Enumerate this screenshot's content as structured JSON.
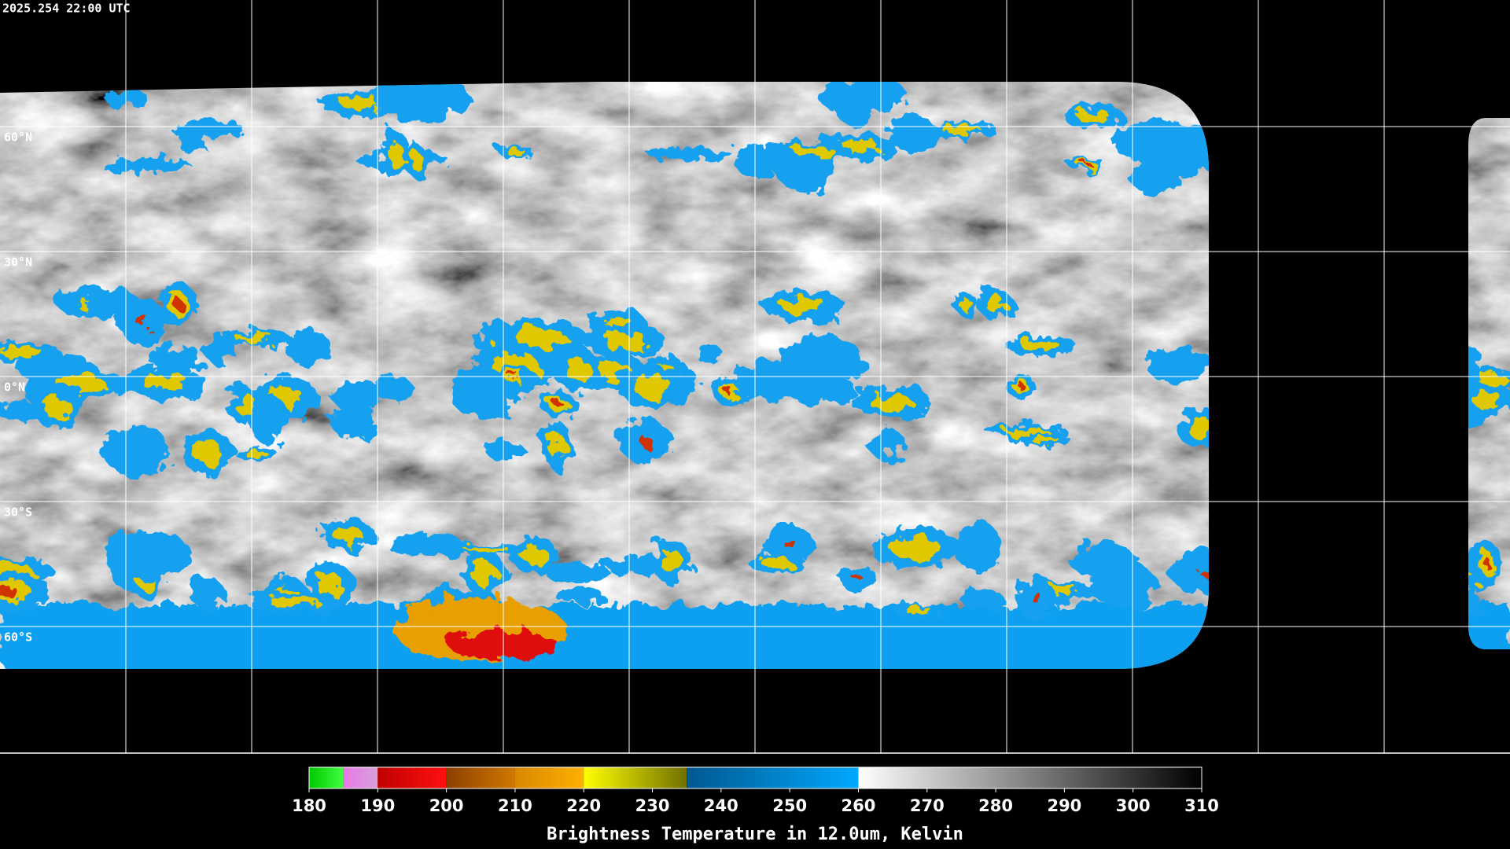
{
  "timestamp": "2025.254 22:00 UTC",
  "map": {
    "latitudes": [
      {
        "value": 60,
        "label": "60°N"
      },
      {
        "value": 30,
        "label": "30°N"
      },
      {
        "value": 0,
        "label": "0°N"
      },
      {
        "value": -30,
        "label": "30°S"
      },
      {
        "value": -60,
        "label": "60°S"
      }
    ]
  },
  "colorbar": {
    "title": "Brightness Temperature in 12.0um, Kelvin",
    "range": [
      180,
      310
    ],
    "ticks": [
      180,
      190,
      200,
      210,
      220,
      230,
      240,
      250,
      260,
      270,
      280,
      290,
      300,
      310
    ],
    "segments": [
      {
        "from": 180,
        "to": 185,
        "colors": [
          "#00c800",
          "#40ff40"
        ]
      },
      {
        "from": 185,
        "to": 190,
        "colors": [
          "#e878e8",
          "#d8a0d8"
        ]
      },
      {
        "from": 190,
        "to": 200,
        "colors": [
          "#c00000",
          "#ff1010"
        ]
      },
      {
        "from": 200,
        "to": 210,
        "colors": [
          "#8c4000",
          "#d07800"
        ]
      },
      {
        "from": 210,
        "to": 220,
        "colors": [
          "#d88800",
          "#ffb000"
        ]
      },
      {
        "from": 220,
        "to": 235,
        "colors": [
          "#ffff00",
          "#707000"
        ]
      },
      {
        "from": 235,
        "to": 260,
        "colors": [
          "#005890",
          "#00a8ff"
        ]
      },
      {
        "from": 260,
        "to": 310,
        "colors": [
          "#ffffff",
          "#000000"
        ]
      }
    ]
  }
}
